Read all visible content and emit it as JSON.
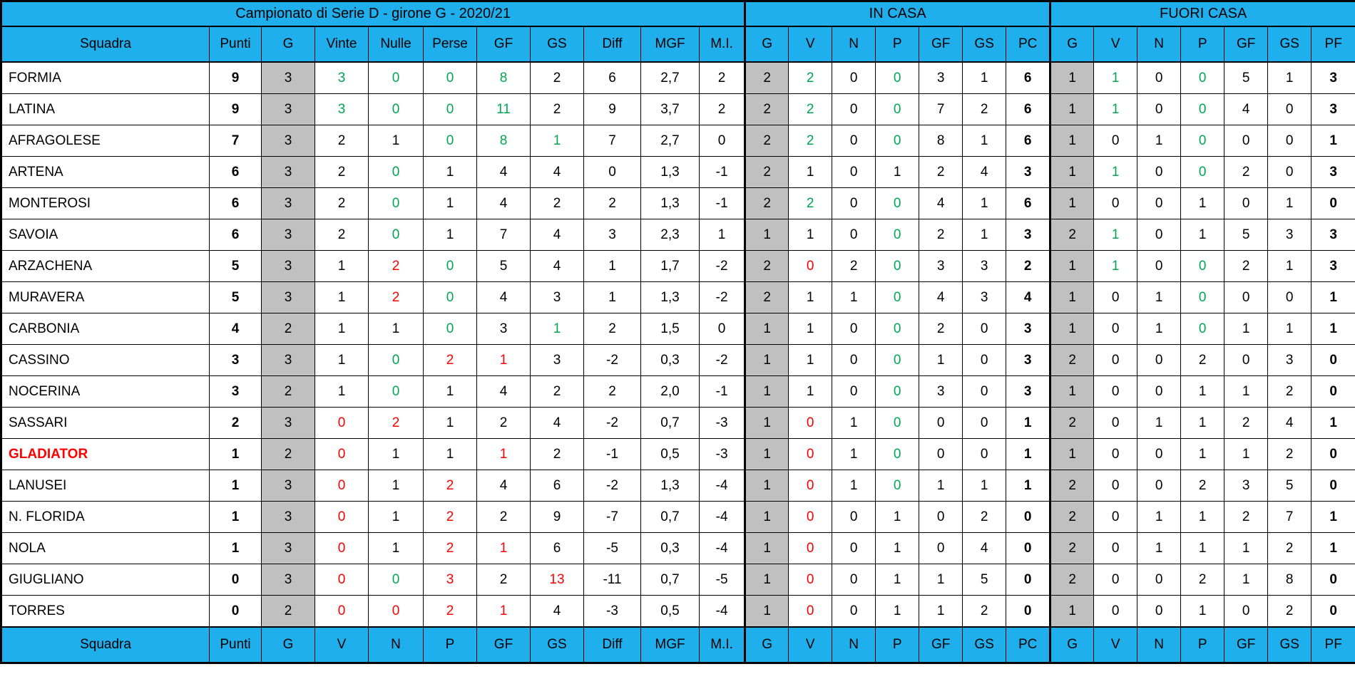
{
  "title": "Campionato di Serie D - girone G - 2020/21",
  "sections": {
    "in_casa": "IN CASA",
    "fuori_casa": "FUORI CASA"
  },
  "colors": {
    "header_bg": "#1FAFEC",
    "grey_column": "#C0C0C0",
    "green": "#00A651",
    "red": "#FF0000",
    "border": "#000000"
  },
  "chart_data": {
    "type": "table",
    "title": "Campionato di Serie D - girone G - 2020/21",
    "column_groups": [
      {
        "label": "Campionato di Serie D - girone G - 2020/21",
        "span": 11
      },
      {
        "label": "IN CASA",
        "span": 7
      },
      {
        "label": "FUORI CASA",
        "span": 7
      }
    ],
    "columns": [
      "Squadra",
      "Punti",
      "G",
      "Vinte",
      "Nulle",
      "Perse",
      "GF",
      "GS",
      "Diff",
      "MGF",
      "M.I.",
      "G",
      "V",
      "N",
      "P",
      "GF",
      "GS",
      "PC",
      "G",
      "V",
      "N",
      "P",
      "GF",
      "GS",
      "PF"
    ],
    "footer_columns": [
      "Squadra",
      "Punti",
      "G",
      "V",
      "N",
      "P",
      "GF",
      "GS",
      "Diff",
      "MGF",
      "M.I.",
      "G",
      "V",
      "N",
      "P",
      "GF",
      "GS",
      "PC",
      "G",
      "V",
      "N",
      "P",
      "GF",
      "GS",
      "PF"
    ],
    "rows": [
      {
        "name": "FORMIA",
        "name_color": "black",
        "values": [
          9,
          3,
          3,
          0,
          0,
          8,
          2,
          6,
          "2,7",
          2,
          2,
          2,
          0,
          0,
          3,
          1,
          6,
          1,
          1,
          0,
          0,
          5,
          1,
          3
        ],
        "colors": [
          "",
          "",
          "g",
          "g",
          "g",
          "g",
          "",
          "",
          "",
          "",
          "",
          "g",
          "",
          "g",
          "",
          "",
          "",
          "",
          "g",
          "",
          "g",
          "",
          "",
          ""
        ]
      },
      {
        "name": "LATINA",
        "name_color": "black",
        "values": [
          9,
          3,
          3,
          0,
          0,
          11,
          2,
          9,
          "3,7",
          2,
          2,
          2,
          0,
          0,
          7,
          2,
          6,
          1,
          1,
          0,
          0,
          4,
          0,
          3
        ],
        "colors": [
          "",
          "",
          "g",
          "g",
          "g",
          "g",
          "",
          "",
          "",
          "",
          "",
          "g",
          "",
          "g",
          "",
          "",
          "",
          "",
          "g",
          "",
          "g",
          "",
          "",
          ""
        ]
      },
      {
        "name": "AFRAGOLESE",
        "name_color": "black",
        "values": [
          7,
          3,
          2,
          1,
          0,
          8,
          1,
          7,
          "2,7",
          0,
          2,
          2,
          0,
          0,
          8,
          1,
          6,
          1,
          0,
          1,
          0,
          0,
          0,
          1
        ],
        "colors": [
          "",
          "",
          "",
          "",
          "g",
          "g",
          "g",
          "",
          "",
          "",
          "",
          "g",
          "",
          "g",
          "",
          "",
          "",
          "",
          "",
          "",
          "g",
          "",
          "",
          ""
        ]
      },
      {
        "name": "ARTENA",
        "name_color": "black",
        "values": [
          6,
          3,
          2,
          0,
          1,
          4,
          4,
          0,
          "1,3",
          -1,
          2,
          1,
          0,
          1,
          2,
          4,
          3,
          1,
          1,
          0,
          0,
          2,
          0,
          3
        ],
        "colors": [
          "",
          "",
          "",
          "g",
          "",
          "",
          "",
          "",
          "",
          "",
          "",
          "",
          "",
          "",
          "",
          "",
          "",
          "",
          "g",
          "",
          "g",
          "",
          "",
          ""
        ]
      },
      {
        "name": "MONTEROSI",
        "name_color": "black",
        "values": [
          6,
          3,
          2,
          0,
          1,
          4,
          2,
          2,
          "1,3",
          -1,
          2,
          2,
          0,
          0,
          4,
          1,
          6,
          1,
          0,
          0,
          1,
          0,
          1,
          0
        ],
        "colors": [
          "",
          "",
          "",
          "g",
          "",
          "",
          "",
          "",
          "",
          "",
          "",
          "g",
          "",
          "g",
          "",
          "",
          "",
          "",
          "",
          "",
          "",
          "",
          "",
          ""
        ]
      },
      {
        "name": "SAVOIA",
        "name_color": "black",
        "values": [
          6,
          3,
          2,
          0,
          1,
          7,
          4,
          3,
          "2,3",
          1,
          1,
          1,
          0,
          0,
          2,
          1,
          3,
          2,
          1,
          0,
          1,
          5,
          3,
          3
        ],
        "colors": [
          "",
          "",
          "",
          "g",
          "",
          "",
          "",
          "",
          "",
          "",
          "",
          "",
          "",
          "g",
          "",
          "",
          "",
          "",
          "g",
          "",
          "",
          "",
          "",
          ""
        ]
      },
      {
        "name": "ARZACHENA",
        "name_color": "black",
        "values": [
          5,
          3,
          1,
          2,
          0,
          5,
          4,
          1,
          "1,7",
          -2,
          2,
          0,
          2,
          0,
          3,
          3,
          2,
          1,
          1,
          0,
          0,
          2,
          1,
          3
        ],
        "colors": [
          "",
          "",
          "",
          "r",
          "g",
          "",
          "",
          "",
          "",
          "",
          "",
          "r",
          "",
          "g",
          "",
          "",
          "",
          "",
          "g",
          "",
          "g",
          "",
          "",
          ""
        ]
      },
      {
        "name": "MURAVERA",
        "name_color": "black",
        "values": [
          5,
          3,
          1,
          2,
          0,
          4,
          3,
          1,
          "1,3",
          -2,
          2,
          1,
          1,
          0,
          4,
          3,
          4,
          1,
          0,
          1,
          0,
          0,
          0,
          1
        ],
        "colors": [
          "",
          "",
          "",
          "r",
          "g",
          "",
          "",
          "",
          "",
          "",
          "",
          "",
          "",
          "g",
          "",
          "",
          "",
          "",
          "",
          "",
          "g",
          "",
          "",
          ""
        ]
      },
      {
        "name": "CARBONIA",
        "name_color": "black",
        "values": [
          4,
          2,
          1,
          1,
          0,
          3,
          1,
          2,
          "1,5",
          0,
          1,
          1,
          0,
          0,
          2,
          0,
          3,
          1,
          0,
          1,
          0,
          1,
          1,
          1
        ],
        "colors": [
          "",
          "",
          "",
          "",
          "g",
          "",
          "g",
          "",
          "",
          "",
          "",
          "",
          "",
          "g",
          "",
          "",
          "",
          "",
          "",
          "",
          "g",
          "",
          "",
          ""
        ]
      },
      {
        "name": "CASSINO",
        "name_color": "black",
        "values": [
          3,
          3,
          1,
          0,
          2,
          1,
          3,
          -2,
          "0,3",
          -2,
          1,
          1,
          0,
          0,
          1,
          0,
          3,
          2,
          0,
          0,
          2,
          0,
          3,
          0
        ],
        "colors": [
          "",
          "",
          "",
          "g",
          "r",
          "r",
          "",
          "",
          "",
          "",
          "",
          "",
          "",
          "g",
          "",
          "",
          "",
          "",
          "",
          "",
          "",
          "",
          "",
          ""
        ]
      },
      {
        "name": "NOCERINA",
        "name_color": "black",
        "values": [
          3,
          2,
          1,
          0,
          1,
          4,
          2,
          2,
          "2,0",
          -1,
          1,
          1,
          0,
          0,
          3,
          0,
          3,
          1,
          0,
          0,
          1,
          1,
          2,
          0
        ],
        "colors": [
          "",
          "",
          "",
          "g",
          "",
          "",
          "",
          "",
          "",
          "",
          "",
          "",
          "",
          "g",
          "",
          "",
          "",
          "",
          "",
          "",
          "",
          "",
          "",
          ""
        ]
      },
      {
        "name": "SASSARI",
        "name_color": "black",
        "values": [
          2,
          3,
          0,
          2,
          1,
          2,
          4,
          -2,
          "0,7",
          -3,
          1,
          0,
          1,
          0,
          0,
          0,
          1,
          2,
          0,
          1,
          1,
          2,
          4,
          1
        ],
        "colors": [
          "",
          "",
          "r",
          "r",
          "",
          "",
          "",
          "",
          "",
          "",
          "",
          "r",
          "",
          "g",
          "",
          "",
          "",
          "",
          "",
          "",
          "",
          "",
          "",
          ""
        ]
      },
      {
        "name": "GLADIATOR",
        "name_color": "red",
        "values": [
          1,
          2,
          0,
          1,
          1,
          1,
          2,
          -1,
          "0,5",
          -3,
          1,
          0,
          1,
          0,
          0,
          0,
          1,
          1,
          0,
          0,
          1,
          1,
          2,
          0
        ],
        "colors": [
          "",
          "",
          "r",
          "",
          "",
          "r",
          "",
          "",
          "",
          "",
          "",
          "r",
          "",
          "g",
          "",
          "",
          "",
          "",
          "",
          "",
          "",
          "",
          "",
          ""
        ]
      },
      {
        "name": "LANUSEI",
        "name_color": "black",
        "values": [
          1,
          3,
          0,
          1,
          2,
          4,
          6,
          -2,
          "1,3",
          -4,
          1,
          0,
          1,
          0,
          1,
          1,
          1,
          2,
          0,
          0,
          2,
          3,
          5,
          0
        ],
        "colors": [
          "",
          "",
          "r",
          "",
          "r",
          "",
          "",
          "",
          "",
          "",
          "",
          "r",
          "",
          "g",
          "",
          "",
          "",
          "",
          "",
          "",
          "",
          "",
          "",
          ""
        ]
      },
      {
        "name": "N. FLORIDA",
        "name_color": "black",
        "values": [
          1,
          3,
          0,
          1,
          2,
          2,
          9,
          -7,
          "0,7",
          -4,
          1,
          0,
          0,
          1,
          0,
          2,
          0,
          2,
          0,
          1,
          1,
          2,
          7,
          1
        ],
        "colors": [
          "",
          "",
          "r",
          "",
          "r",
          "",
          "",
          "",
          "",
          "",
          "",
          "r",
          "",
          "",
          "",
          "",
          "",
          "",
          "",
          "",
          "",
          "",
          "",
          ""
        ]
      },
      {
        "name": "NOLA",
        "name_color": "black",
        "values": [
          1,
          3,
          0,
          1,
          2,
          1,
          6,
          -5,
          "0,3",
          -4,
          1,
          0,
          0,
          1,
          0,
          4,
          0,
          2,
          0,
          1,
          1,
          1,
          2,
          1
        ],
        "colors": [
          "",
          "",
          "r",
          "",
          "r",
          "r",
          "",
          "",
          "",
          "",
          "",
          "r",
          "",
          "",
          "",
          "",
          "",
          "",
          "",
          "",
          "",
          "",
          "",
          ""
        ]
      },
      {
        "name": "GIUGLIANO",
        "name_color": "black",
        "values": [
          0,
          3,
          0,
          0,
          3,
          2,
          13,
          -11,
          "0,7",
          -5,
          1,
          0,
          0,
          1,
          1,
          5,
          0,
          2,
          0,
          0,
          2,
          1,
          8,
          0
        ],
        "colors": [
          "",
          "",
          "r",
          "g",
          "r",
          "",
          "r",
          "",
          "",
          "",
          "",
          "r",
          "",
          "",
          "",
          "",
          "",
          "",
          "",
          "",
          "",
          "",
          "",
          ""
        ]
      },
      {
        "name": "TORRES",
        "name_color": "black",
        "values": [
          0,
          2,
          0,
          0,
          2,
          1,
          4,
          -3,
          "0,5",
          -4,
          1,
          0,
          0,
          1,
          1,
          2,
          0,
          1,
          0,
          0,
          1,
          0,
          2,
          0
        ],
        "colors": [
          "",
          "",
          "r",
          "r",
          "r",
          "r",
          "",
          "",
          "",
          "",
          "",
          "r",
          "",
          "",
          "",
          "",
          "",
          "",
          "",
          "",
          "",
          "",
          "",
          ""
        ]
      }
    ]
  }
}
